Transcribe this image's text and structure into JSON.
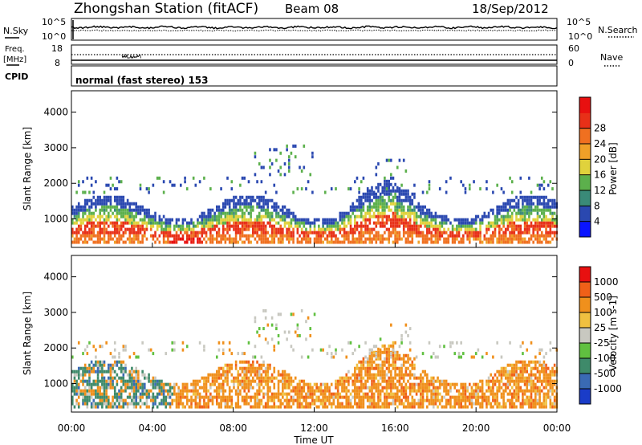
{
  "header": {
    "station": "Zhongshan Station (fitACF)",
    "beam": "Beam 08",
    "date": "18/Sep/2012"
  },
  "top_panels": {
    "nsky_label": "N.Sky",
    "nsky_top": "10^5",
    "nsky_bottom": "10^0",
    "nsearch_label": "N.Search",
    "nsearch_top": "10^5",
    "nsearch_bottom": "10^0",
    "freq_label_1": "Freq.",
    "freq_label_2": "[MHz]",
    "freq_top": "18",
    "freq_bottom": "8",
    "nave_label": "Nave",
    "nave_top": "60",
    "nave_bottom": "0",
    "cpid_label": "CPID",
    "cpid_text": "normal (fast stereo) 153"
  },
  "chart_data": [
    {
      "type": "heatmap",
      "name": "power",
      "ylabel": "Slant Range [km]",
      "yticks": [
        "1000",
        "2000",
        "3000",
        "4000"
      ],
      "ylim": [
        200,
        4600
      ],
      "colorbar_label": "Power [dB]",
      "colorbar_ticks": [
        "4",
        "8",
        "12",
        "16",
        "20",
        "24",
        "28"
      ],
      "colorbar_colors": [
        "#0a14ff",
        "#2a48b0",
        "#3a8a78",
        "#5cb04c",
        "#e0d23c",
        "#f0a028",
        "#f07020",
        "#e83018",
        "#e81010"
      ]
    },
    {
      "type": "heatmap",
      "name": "velocity",
      "ylabel": "Slant Range [km]",
      "yticks": [
        "1000",
        "2000",
        "3000",
        "4000"
      ],
      "ylim": [
        200,
        4600
      ],
      "xlabel": "Time UT",
      "xticks": [
        "00:00",
        "04:00",
        "08:00",
        "12:00",
        "16:00",
        "20:00",
        "00:00"
      ],
      "colorbar_label": "Velocity [m s-1]",
      "colorbar_ticks": [
        "1000",
        "500",
        "100",
        "25",
        "-25",
        "-100",
        "-500",
        "-1000"
      ],
      "colorbar_colors": [
        "#1a3cc8",
        "#3a6ab4",
        "#3e8a6a",
        "#60c040",
        "#c8c8c0",
        "#f0c040",
        "#f0901c",
        "#f06018",
        "#e81010"
      ]
    }
  ]
}
